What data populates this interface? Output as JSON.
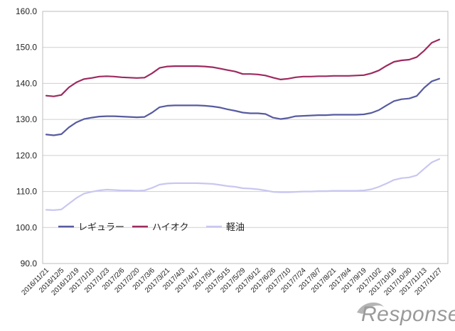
{
  "chart_data": {
    "type": "line",
    "title": "",
    "xlabel": "",
    "ylabel": "",
    "ylim": [
      90,
      160
    ],
    "y_ticks": [
      "90.0",
      "100.0",
      "110.0",
      "120.0",
      "130.0",
      "140.0",
      "150.0",
      "160.0"
    ],
    "grid": "horizontal",
    "legend_position": "lower-left inside plot",
    "x_tick_labels": [
      "2016/11/21",
      "2016/12/5",
      "2016/12/19",
      "2017/1/10",
      "2017/1/23",
      "2017/2/6",
      "2017/2/20",
      "2017/3/6",
      "2017/3/21",
      "2017/4/3",
      "2017/4/17",
      "2017/5/1",
      "2017/5/15",
      "2017/5/29",
      "2017/6/12",
      "2017/6/26",
      "2017/7/10",
      "2017/7/24",
      "2017/8/7",
      "2017/8/21",
      "2017/9/4",
      "2017/9/19",
      "2017/10/2",
      "2017/10/16",
      "2017/10/30",
      "2017/11/13",
      "2017/11/27"
    ],
    "x": [
      "2016/11/21",
      "2016/11/28",
      "2016/12/5",
      "2016/12/12",
      "2016/12/19",
      "2016/12/26",
      "2017/1/10",
      "2017/1/16",
      "2017/1/23",
      "2017/1/30",
      "2017/2/6",
      "2017/2/13",
      "2017/2/20",
      "2017/2/27",
      "2017/3/6",
      "2017/3/13",
      "2017/3/21",
      "2017/3/27",
      "2017/4/3",
      "2017/4/10",
      "2017/4/17",
      "2017/4/24",
      "2017/5/1",
      "2017/5/8",
      "2017/5/15",
      "2017/5/22",
      "2017/5/29",
      "2017/6/5",
      "2017/6/12",
      "2017/6/19",
      "2017/6/26",
      "2017/7/3",
      "2017/7/10",
      "2017/7/18",
      "2017/7/24",
      "2017/7/31",
      "2017/8/7",
      "2017/8/14",
      "2017/8/21",
      "2017/8/28",
      "2017/9/4",
      "2017/9/11",
      "2017/9/19",
      "2017/9/25",
      "2017/10/2",
      "2017/10/10",
      "2017/10/16",
      "2017/10/23",
      "2017/10/30",
      "2017/11/6",
      "2017/11/13",
      "2017/11/20",
      "2017/11/27"
    ],
    "series": [
      {
        "name": "レギュラー",
        "color": "#575b9f",
        "values": [
          125.8,
          125.6,
          125.9,
          127.8,
          129.2,
          130.1,
          130.5,
          130.8,
          130.9,
          130.9,
          130.8,
          130.7,
          130.6,
          130.7,
          131.9,
          133.4,
          133.8,
          133.9,
          133.9,
          133.9,
          133.9,
          133.8,
          133.6,
          133.3,
          132.8,
          132.4,
          131.9,
          131.7,
          131.7,
          131.5,
          130.5,
          130.1,
          130.4,
          130.9,
          131.0,
          131.1,
          131.2,
          131.2,
          131.3,
          131.3,
          131.3,
          131.3,
          131.4,
          131.8,
          132.6,
          133.9,
          135.1,
          135.6,
          135.8,
          136.5,
          138.8,
          140.6,
          141.3
        ]
      },
      {
        "name": "ハイオク",
        "color": "#9c2a5e",
        "values": [
          136.6,
          136.4,
          136.8,
          138.9,
          140.3,
          141.2,
          141.5,
          141.9,
          142.0,
          141.9,
          141.7,
          141.6,
          141.5,
          141.6,
          142.8,
          144.3,
          144.7,
          144.8,
          144.8,
          144.8,
          144.8,
          144.7,
          144.5,
          144.1,
          143.7,
          143.3,
          142.6,
          142.6,
          142.5,
          142.2,
          141.6,
          141.1,
          141.3,
          141.7,
          141.9,
          141.9,
          142.0,
          142.0,
          142.1,
          142.1,
          142.1,
          142.2,
          142.3,
          142.8,
          143.6,
          144.9,
          146.0,
          146.4,
          146.6,
          147.3,
          149.1,
          151.3,
          152.2
        ]
      },
      {
        "name": "軽油",
        "color": "#c9c7f0",
        "values": [
          104.9,
          104.8,
          105.0,
          106.6,
          108.2,
          109.4,
          109.9,
          110.3,
          110.5,
          110.4,
          110.3,
          110.3,
          110.2,
          110.3,
          111.0,
          111.9,
          112.2,
          112.3,
          112.3,
          112.3,
          112.3,
          112.2,
          112.1,
          111.8,
          111.5,
          111.3,
          110.9,
          110.8,
          110.6,
          110.3,
          109.9,
          109.8,
          109.8,
          109.9,
          110.0,
          110.0,
          110.1,
          110.1,
          110.2,
          110.2,
          110.2,
          110.2,
          110.3,
          110.6,
          111.3,
          112.2,
          113.2,
          113.7,
          113.9,
          114.5,
          116.3,
          118.1,
          119.0
        ]
      }
    ]
  },
  "watermark": {
    "text": "Response."
  }
}
